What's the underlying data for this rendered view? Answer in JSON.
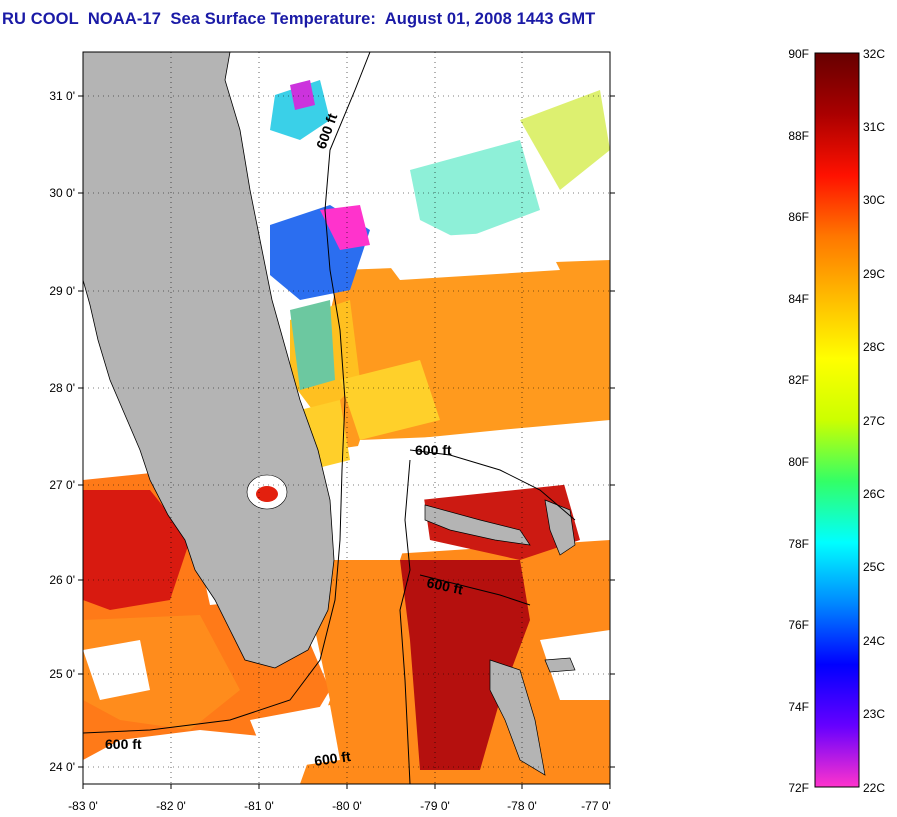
{
  "title": "RU COOL  NOAA-17  Sea Surface Temperature:  August 01, 2008 1443 GMT",
  "map": {
    "lat_labels": [
      "31 0'",
      "30 0'",
      "29 0'",
      "28 0'",
      "27 0'",
      "26 0'",
      "25 0'",
      "24 0'"
    ],
    "lon_labels": [
      "-83 0'",
      "-82 0'",
      "-81 0'",
      "-80 0'",
      "-79 0'",
      "-78 0'",
      "-77 0'"
    ],
    "contour_labels": [
      "600 ft",
      "600 ft",
      "600 ft",
      "600 ft",
      "600 ft"
    ],
    "land_color": "#b4b4b4",
    "cloud_color": "#ffffff"
  },
  "colorbar": {
    "f_labels": [
      "90F",
      "88F",
      "86F",
      "84F",
      "82F",
      "80F",
      "78F",
      "76F",
      "74F",
      "72F"
    ],
    "c_labels": [
      "32C",
      "31C",
      "30C",
      "29C",
      "28C",
      "27C",
      "26C",
      "25C",
      "24C",
      "23C",
      "22C"
    ],
    "colors": [
      "#ff33cc",
      "#6600ff",
      "#0000ff",
      "#0088ff",
      "#00ffff",
      "#33ff66",
      "#ccff00",
      "#ffff00",
      "#ffbb00",
      "#ff7700",
      "#ff1100",
      "#aa0000",
      "#660000"
    ]
  }
}
